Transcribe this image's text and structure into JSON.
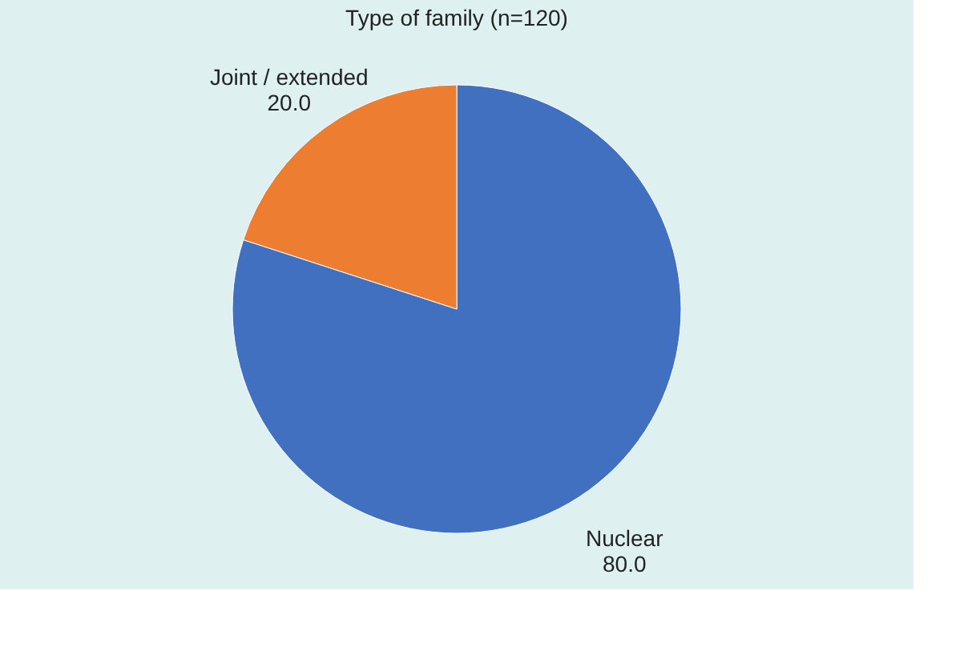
{
  "chart_data": {
    "type": "pie",
    "title": "Type of family (n=120)",
    "categories": [
      "Nuclear",
      "Joint / extended"
    ],
    "values": [
      80,
      20
    ],
    "value_labels": [
      "80.0",
      "20.0"
    ],
    "colors": [
      "#4070bf",
      "#ed7d31"
    ],
    "legend": false
  }
}
